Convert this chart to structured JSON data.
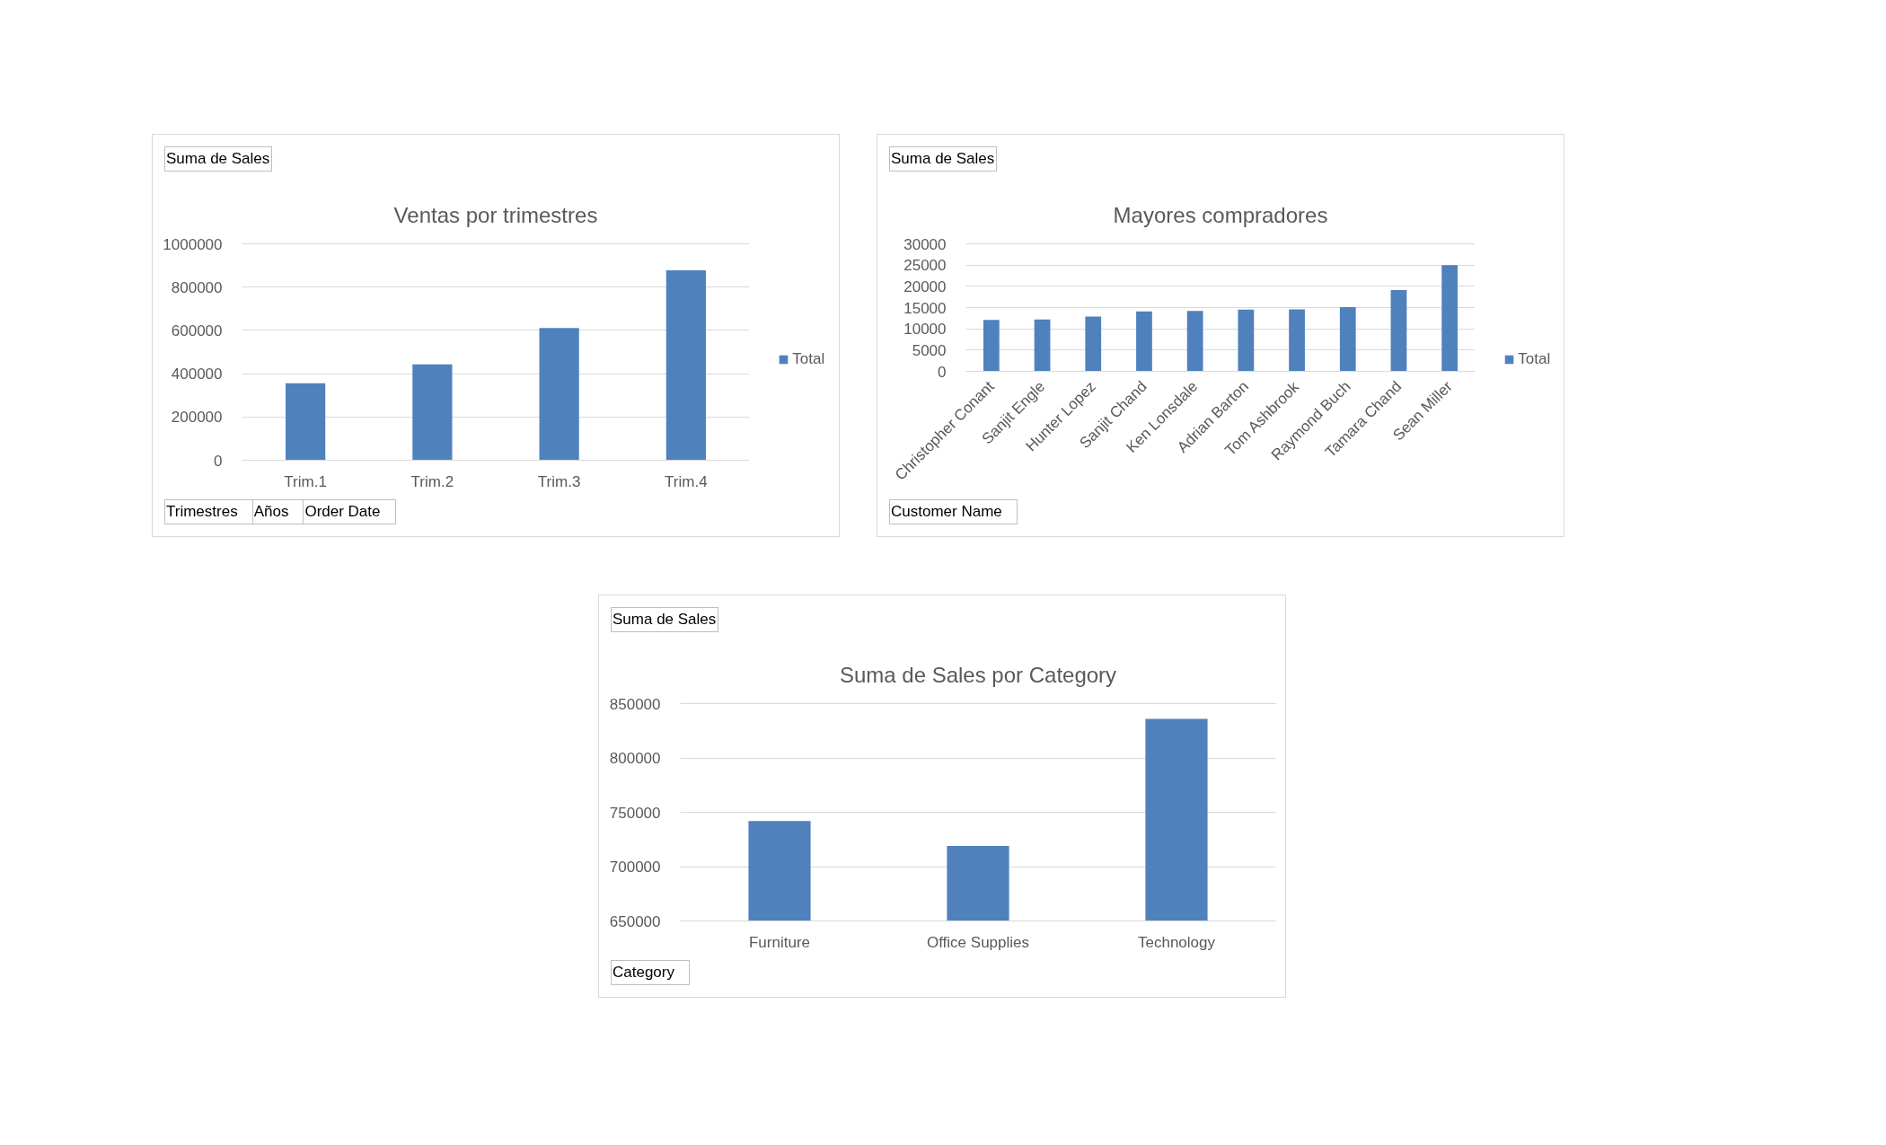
{
  "chart_data": [
    {
      "type": "bar",
      "title": "Ventas por trimestres",
      "categories": [
        "Trim.1",
        "Trim.2",
        "Trim.3",
        "Trim.4"
      ],
      "series": [
        {
          "name": "Total",
          "color": "#4f81bd",
          "values": [
            356000,
            443000,
            611000,
            878000
          ]
        }
      ],
      "ylim": [
        0,
        1000000
      ],
      "yticks": [
        0,
        200000,
        400000,
        600000,
        800000,
        1000000
      ],
      "grid": "y",
      "legend": "right",
      "annotations": [
        "Suma de Sales",
        "Trimestres",
        "Años",
        "Order Date"
      ]
    },
    {
      "type": "bar",
      "title": "Mayores compradores",
      "categories": [
        "Christopher Conant",
        "Sanjit Engle",
        "Hunter Lopez",
        "Sanjit Chand",
        "Ken Lonsdale",
        "Adrian Barton",
        "Tom Ashbrook",
        "Raymond Buch",
        "Tamara Chand",
        "Sean Miller"
      ],
      "series": [
        {
          "name": "Total",
          "color": "#4f81bd",
          "values": [
            12100,
            12200,
            12900,
            14100,
            14200,
            14500,
            14600,
            15100,
            19100,
            25000
          ]
        }
      ],
      "ylim": [
        0,
        30000
      ],
      "yticks": [
        0,
        5000,
        10000,
        15000,
        20000,
        25000,
        30000
      ],
      "grid": "y",
      "legend": "right",
      "annotations": [
        "Suma de Sales",
        "Customer Name"
      ]
    },
    {
      "type": "bar",
      "title": "Suma de Sales por Category",
      "categories": [
        "Furniture",
        "Office Supplies",
        "Technology"
      ],
      "series": [
        {
          "color": "#4f81bd",
          "values": [
            742000,
            719000,
            836000
          ]
        }
      ],
      "ylim": [
        650000,
        850000
      ],
      "yticks": [
        650000,
        700000,
        750000,
        800000,
        850000
      ],
      "grid": "y",
      "annotations": [
        "Suma de Sales",
        "Category"
      ]
    }
  ]
}
